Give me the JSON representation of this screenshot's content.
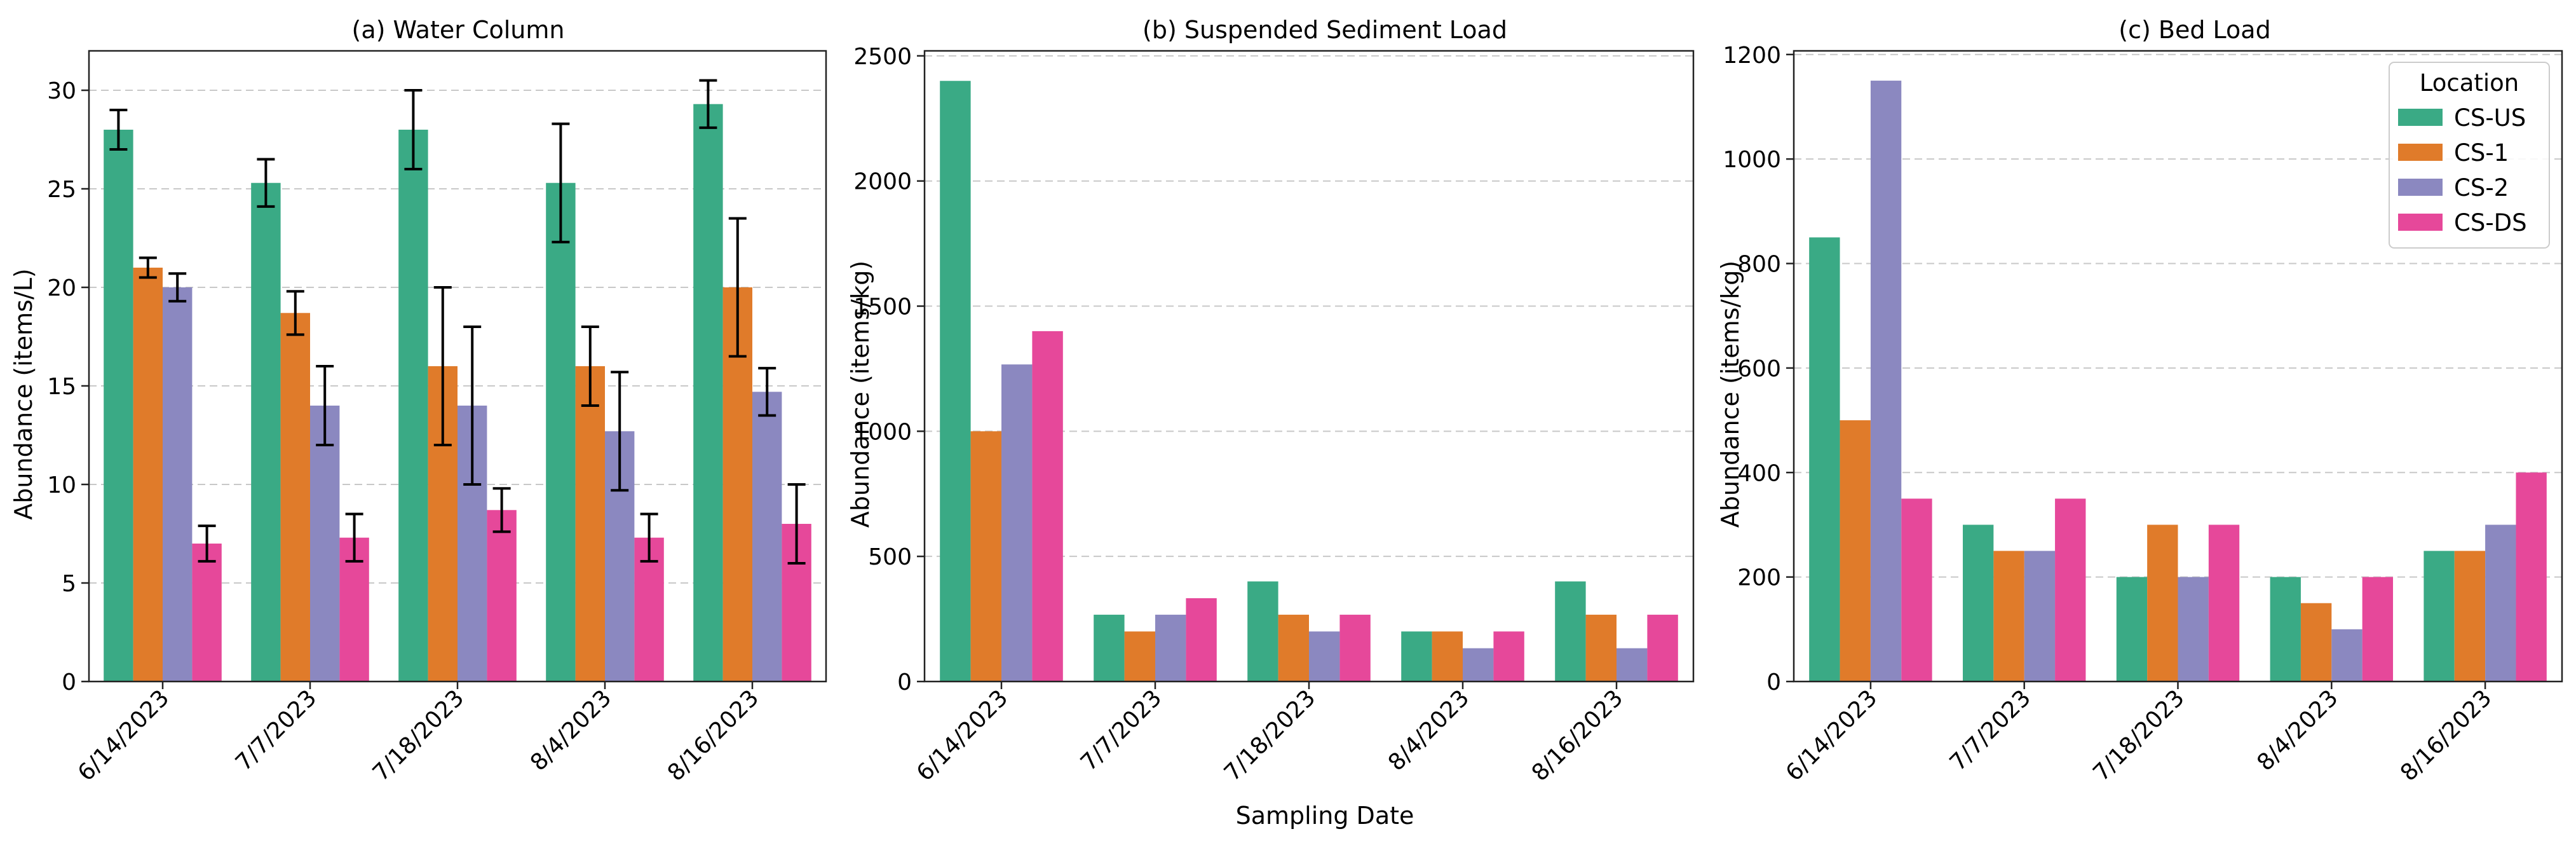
{
  "colors": {
    "series": [
      "#3aaa85",
      "#e07b2a",
      "#8b88c0",
      "#e6489a"
    ],
    "grid": "#c8c8c8",
    "axis": "#222222",
    "error_bar": "#000000"
  },
  "figure": {
    "xlabel": "Sampling Date",
    "legend": {
      "title": "Location",
      "entries": [
        "CS-US",
        "CS-1",
        "CS-2",
        "CS-DS"
      ],
      "placement": "top-right of panel (c)"
    }
  },
  "chart_data": [
    {
      "type": "bar",
      "title": "(a) Water Column",
      "xlabel": "",
      "ylabel": "Abundance (items/L)",
      "categories": [
        "6/14/2023",
        "7/7/2023",
        "7/18/2023",
        "8/4/2023",
        "8/16/2023"
      ],
      "ylim": [
        0,
        32
      ],
      "yticks": [
        0,
        5,
        10,
        15,
        20,
        25,
        30
      ],
      "grid": "y dashed",
      "series": [
        {
          "name": "CS-US",
          "values": [
            28,
            25.3,
            28,
            25.3,
            29.3
          ],
          "errors": [
            1,
            1.2,
            2,
            3,
            1.2
          ]
        },
        {
          "name": "CS-1",
          "values": [
            21,
            18.7,
            16,
            16,
            20
          ],
          "errors": [
            0.5,
            1.1,
            4,
            2,
            3.5
          ]
        },
        {
          "name": "CS-2",
          "values": [
            20,
            14,
            14,
            12.7,
            14.7
          ],
          "errors": [
            0.7,
            2,
            4,
            3,
            1.2
          ]
        },
        {
          "name": "CS-DS",
          "values": [
            7,
            7.3,
            8.7,
            7.3,
            8
          ],
          "errors": [
            0.9,
            1.2,
            1.1,
            1.2,
            2
          ]
        }
      ]
    },
    {
      "type": "bar",
      "title": "(b) Suspended Sediment Load",
      "xlabel": "Sampling Date",
      "ylabel": "Abundance (items/kg)",
      "categories": [
        "6/14/2023",
        "7/7/2023",
        "7/18/2023",
        "8/4/2023",
        "8/16/2023"
      ],
      "ylim": [
        0,
        2520
      ],
      "yticks": [
        0,
        500,
        1000,
        1500,
        2000,
        2500
      ],
      "grid": "y dashed",
      "series": [
        {
          "name": "CS-US",
          "values": [
            2400,
            267,
            400,
            200,
            400
          ]
        },
        {
          "name": "CS-1",
          "values": [
            1000,
            200,
            267,
            200,
            267
          ]
        },
        {
          "name": "CS-2",
          "values": [
            1267,
            267,
            200,
            133,
            133
          ]
        },
        {
          "name": "CS-DS",
          "values": [
            1400,
            333,
            267,
            200,
            267
          ]
        }
      ]
    },
    {
      "type": "bar",
      "title": "(c) Bed Load",
      "xlabel": "",
      "ylabel": "Abundance (items/kg)",
      "categories": [
        "6/14/2023",
        "7/7/2023",
        "7/18/2023",
        "8/4/2023",
        "8/16/2023"
      ],
      "ylim": [
        0,
        1207
      ],
      "yticks": [
        0,
        200,
        400,
        600,
        800,
        1000,
        1200
      ],
      "grid": "y dashed",
      "series": [
        {
          "name": "CS-US",
          "values": [
            850,
            300,
            200,
            200,
            250
          ]
        },
        {
          "name": "CS-1",
          "values": [
            500,
            250,
            300,
            150,
            250
          ]
        },
        {
          "name": "CS-2",
          "values": [
            1150,
            250,
            200,
            100,
            300
          ]
        },
        {
          "name": "CS-DS",
          "values": [
            350,
            350,
            300,
            200,
            400
          ]
        }
      ]
    }
  ]
}
